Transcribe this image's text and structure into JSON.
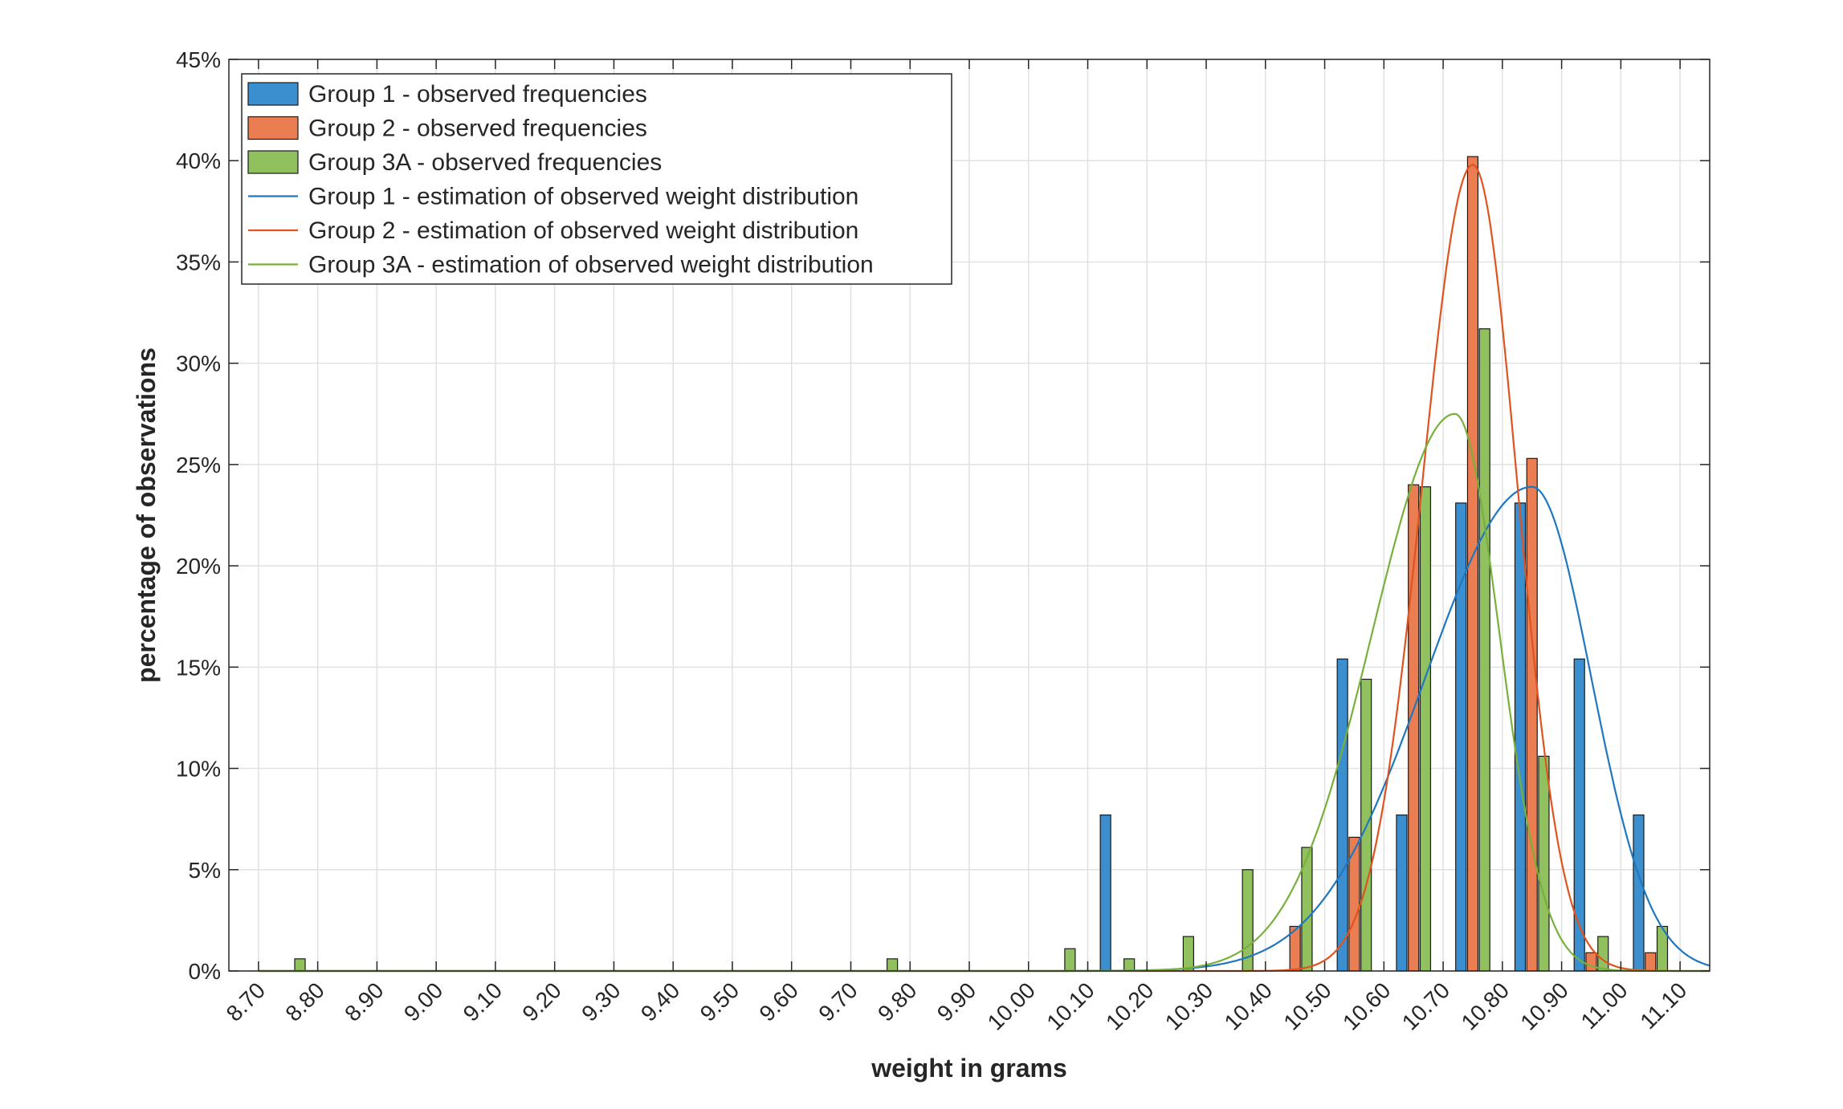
{
  "chart_data": {
    "type": "bar",
    "xlabel": "weight in grams",
    "ylabel": "percentage of observations",
    "xlim": [
      8.65,
      11.15
    ],
    "ylim": [
      0,
      45
    ],
    "x_ticks": [
      "8.70",
      "8.80",
      "8.90",
      "9.00",
      "9.10",
      "9.20",
      "9.30",
      "9.40",
      "9.50",
      "9.60",
      "9.70",
      "9.80",
      "9.90",
      "10.00",
      "10.10",
      "10.20",
      "10.30",
      "10.40",
      "10.50",
      "10.60",
      "10.70",
      "10.80",
      "10.90",
      "11.00",
      "11.10"
    ],
    "y_ticks": [
      "0%",
      "5%",
      "10%",
      "15%",
      "20%",
      "25%",
      "30%",
      "35%",
      "40%",
      "45%"
    ],
    "grid": true,
    "legend_placement": "top-left",
    "colors": {
      "group1_bar": "#3b8fcf",
      "group2_bar": "#ea7d51",
      "group3a_bar": "#91c15f",
      "group1_line": "#1f77c0",
      "group2_line": "#e0531f",
      "group3a_line": "#77b03a"
    },
    "bin_offsets": {
      "group1": -0.02,
      "group2": 0.0,
      "group3a": 0.02
    },
    "bar_series": [
      {
        "name": "Group 1 - observed frequencies",
        "key": "group1",
        "bins": [
          10.1,
          10.5,
          10.6,
          10.7,
          10.8,
          10.9,
          11.0
        ],
        "values": [
          7.7,
          15.4,
          7.7,
          23.1,
          23.1,
          15.4,
          7.7
        ]
      },
      {
        "name": "Group 2 - observed frequencies",
        "key": "group2",
        "bins": [
          10.4,
          10.5,
          10.6,
          10.7,
          10.8,
          10.9,
          11.0
        ],
        "values": [
          2.2,
          6.6,
          24.0,
          40.2,
          25.3,
          0.9,
          0.9
        ]
      },
      {
        "name": "Group 3A - observed frequencies",
        "key": "group3a",
        "bins": [
          8.7,
          9.7,
          10.0,
          10.1,
          10.2,
          10.3,
          10.4,
          10.5,
          10.6,
          10.7,
          10.8,
          10.9,
          11.0
        ],
        "values": [
          0.6,
          0.6,
          1.1,
          0.6,
          1.7,
          5.0,
          6.1,
          14.4,
          23.9,
          31.7,
          10.6,
          1.7,
          2.2
        ]
      }
    ],
    "line_series": [
      {
        "name": "Group 1 - estimation of observed weight distribution",
        "key": "group1",
        "peak_x": 10.85,
        "peak_y": 23.9,
        "left_width": 0.18,
        "right_width": 0.1
      },
      {
        "name": "Group 2 - estimation of observed weight distribution",
        "key": "group2",
        "peak_x": 10.75,
        "peak_y": 39.8,
        "left_width": 0.085,
        "right_width": 0.075
      },
      {
        "name": "Group 3A - estimation of observed weight distribution",
        "key": "group3a",
        "peak_x": 10.72,
        "peak_y": 27.5,
        "left_width": 0.14,
        "right_width": 0.075
      }
    ]
  }
}
